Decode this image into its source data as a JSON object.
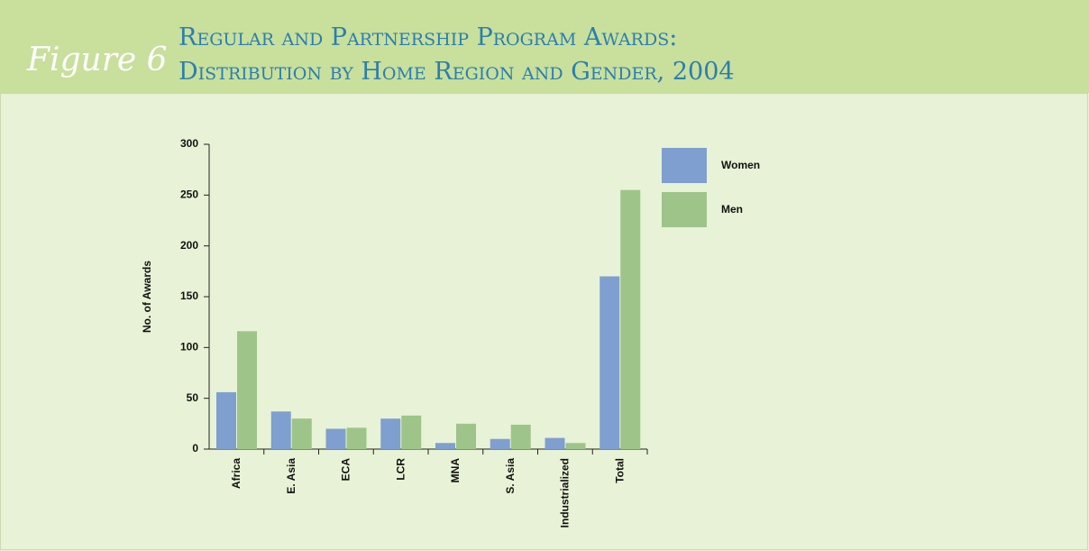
{
  "chart_data": {
    "type": "bar",
    "figure_label": "Figure 6",
    "title": [
      "Regular and Partnership Program Awards:",
      "Distribution by Home Region and Gender, 2004"
    ],
    "ylabel": "No. of Awards",
    "categories": [
      "Africa",
      "E. Asia",
      "ECA",
      "LCR",
      "MNA",
      "S. Asia",
      "Industrialized",
      "Total"
    ],
    "series": [
      {
        "name": "Women",
        "color": "#7f9fd0",
        "values": [
          56,
          37,
          20,
          30,
          6,
          10,
          11,
          170
        ]
      },
      {
        "name": "Men",
        "color": "#9ec48a",
        "values": [
          116,
          30,
          21,
          33,
          25,
          24,
          6,
          255
        ]
      }
    ],
    "ylim": [
      0,
      300
    ],
    "yticks": [
      0,
      50,
      100,
      150,
      200,
      250,
      300
    ],
    "grid": false,
    "legend": "right"
  }
}
